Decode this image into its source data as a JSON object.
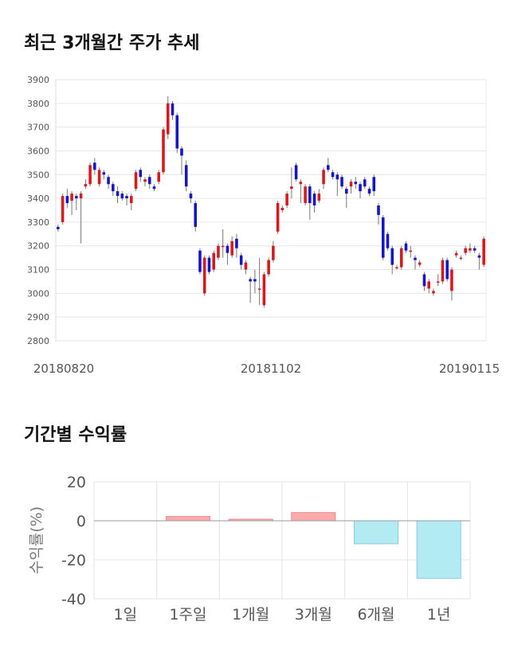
{
  "sections": {
    "price_title": "최근 3개월간 주가 추세",
    "returns_title": "기간별 수익률"
  },
  "chart_data": [
    {
      "type": "candlestick",
      "title": "최근 3개월간 주가 추세",
      "ylim": [
        2800,
        3900
      ],
      "y_ticks": [
        2800,
        2900,
        3000,
        3100,
        3200,
        3300,
        3400,
        3500,
        3600,
        3700,
        3800,
        3900
      ],
      "x_tick_labels": [
        "20180820",
        "20181102",
        "20190115"
      ],
      "grid": true,
      "colors": {
        "up": "#d7191c",
        "down": "#1515c8",
        "wick": "#777777"
      },
      "candles": [
        [
          3280,
          3270,
          3290,
          3260
        ],
        [
          3300,
          3410,
          3420,
          3290
        ],
        [
          3410,
          3380,
          3440,
          3360
        ],
        [
          3390,
          3420,
          3430,
          3330
        ],
        [
          3410,
          3400,
          3420,
          3350
        ],
        [
          3400,
          3420,
          3430,
          3210
        ],
        [
          3450,
          3460,
          3480,
          3440
        ],
        [
          3460,
          3540,
          3550,
          3450
        ],
        [
          3550,
          3520,
          3570,
          3500
        ],
        [
          3460,
          3520,
          3530,
          3450
        ],
        [
          3510,
          3500,
          3520,
          3480
        ],
        [
          3490,
          3460,
          3500,
          3440
        ],
        [
          3460,
          3430,
          3470,
          3410
        ],
        [
          3430,
          3410,
          3450,
          3380
        ],
        [
          3420,
          3400,
          3430,
          3390
        ],
        [
          3410,
          3400,
          3420,
          3370
        ],
        [
          3380,
          3410,
          3420,
          3350
        ],
        [
          3440,
          3510,
          3520,
          3430
        ],
        [
          3520,
          3490,
          3530,
          3470
        ],
        [
          3470,
          3480,
          3490,
          3450
        ],
        [
          3490,
          3460,
          3500,
          3440
        ],
        [
          3450,
          3440,
          3460,
          3430
        ],
        [
          3470,
          3510,
          3520,
          3460
        ],
        [
          3510,
          3690,
          3700,
          3500
        ],
        [
          3670,
          3800,
          3830,
          3650
        ],
        [
          3800,
          3750,
          3810,
          3730
        ],
        [
          3750,
          3610,
          3760,
          3590
        ],
        [
          3610,
          3580,
          3620,
          3500
        ],
        [
          3540,
          3450,
          3560,
          3430
        ],
        [
          3420,
          3400,
          3430,
          3380
        ],
        [
          3380,
          3280,
          3390,
          3260
        ],
        [
          3180,
          3090,
          3190,
          3080
        ],
        [
          3000,
          3150,
          3160,
          2990
        ],
        [
          3150,
          3090,
          3160,
          3080
        ],
        [
          3100,
          3170,
          3180,
          3090
        ],
        [
          3150,
          3200,
          3210,
          3140
        ],
        [
          3200,
          3200,
          3270,
          3150
        ],
        [
          3200,
          3170,
          3210,
          3120
        ],
        [
          3160,
          3220,
          3240,
          3150
        ],
        [
          3230,
          3190,
          3250,
          3150
        ],
        [
          3160,
          3120,
          3170,
          3100
        ],
        [
          3100,
          3130,
          3140,
          3080
        ],
        [
          3060,
          3050,
          3070,
          2960
        ],
        [
          3060,
          3050,
          3100,
          3000
        ],
        [
          3020,
          3020,
          3150,
          2950
        ],
        [
          2950,
          3080,
          3090,
          2940
        ],
        [
          3080,
          3140,
          3150,
          3070
        ],
        [
          3140,
          3200,
          3220,
          3130
        ],
        [
          3260,
          3380,
          3390,
          3250
        ],
        [
          3350,
          3360,
          3370,
          3340
        ],
        [
          3370,
          3420,
          3430,
          3360
        ],
        [
          3440,
          3450,
          3530,
          3400
        ],
        [
          3540,
          3480,
          3550,
          3470
        ],
        [
          3460,
          3470,
          3480,
          3380
        ],
        [
          3380,
          3450,
          3460,
          3370
        ],
        [
          3450,
          3380,
          3460,
          3310
        ],
        [
          3420,
          3370,
          3430,
          3340
        ],
        [
          3390,
          3420,
          3440,
          3380
        ],
        [
          3460,
          3520,
          3530,
          3440
        ],
        [
          3540,
          3520,
          3570,
          3510
        ],
        [
          3510,
          3490,
          3520,
          3480
        ],
        [
          3500,
          3480,
          3510,
          3410
        ],
        [
          3490,
          3450,
          3500,
          3440
        ],
        [
          3440,
          3420,
          3450,
          3360
        ],
        [
          3450,
          3470,
          3480,
          3420
        ],
        [
          3470,
          3460,
          3490,
          3440
        ],
        [
          3460,
          3430,
          3470,
          3400
        ],
        [
          3480,
          3450,
          3490,
          3440
        ],
        [
          3440,
          3420,
          3450,
          3410
        ],
        [
          3490,
          3430,
          3500,
          3410
        ],
        [
          3370,
          3330,
          3380,
          3290
        ],
        [
          3320,
          3150,
          3330,
          3140
        ],
        [
          3250,
          3190,
          3260,
          3180
        ],
        [
          3190,
          3120,
          3200,
          3080
        ],
        [
          3110,
          3110,
          3120,
          3100
        ],
        [
          3110,
          3190,
          3200,
          3100
        ],
        [
          3210,
          3180,
          3220,
          3170
        ],
        [
          3180,
          3180,
          3200,
          3150
        ],
        [
          3150,
          3140,
          3160,
          3100
        ],
        [
          3120,
          3130,
          3140,
          3110
        ],
        [
          3080,
          3030,
          3090,
          3010
        ],
        [
          3020,
          3050,
          3060,
          3000
        ],
        [
          3000,
          3010,
          3020,
          2990
        ],
        [
          3050,
          3050,
          3080,
          3030
        ],
        [
          3050,
          3140,
          3150,
          3040
        ],
        [
          3140,
          3060,
          3150,
          3050
        ],
        [
          3010,
          3100,
          3110,
          2970
        ],
        [
          3160,
          3170,
          3180,
          3150
        ],
        [
          3150,
          3150,
          3160,
          3140
        ],
        [
          3170,
          3190,
          3200,
          3160
        ],
        [
          3180,
          3190,
          3210,
          3170
        ],
        [
          3190,
          3180,
          3200,
          3170
        ],
        [
          3160,
          3150,
          3170,
          3100
        ],
        [
          3120,
          3230,
          3240,
          3110
        ]
      ]
    },
    {
      "type": "bar",
      "title": "기간별 수익률",
      "ylabel": "수익률(%)",
      "categories": [
        "1일",
        "1주일",
        "1개월",
        "3개월",
        "6개월",
        "1년"
      ],
      "values": [
        0,
        2.2,
        0.8,
        4.2,
        -11.8,
        -29.5
      ],
      "ylim": [
        -40,
        20
      ],
      "y_ticks": [
        20,
        0,
        -20,
        -40
      ],
      "grid": true,
      "colors": {
        "positive_fill": "#ffabab",
        "positive_stroke": "#e58a8a",
        "negative_fill": "#b2ebf2",
        "negative_stroke": "#88cbd6",
        "zero_line": "#999999"
      }
    }
  ]
}
